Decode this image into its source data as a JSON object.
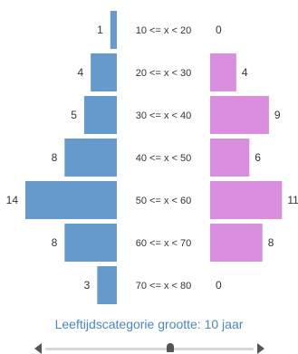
{
  "chart_data": {
    "type": "bar",
    "layout": "population-pyramid",
    "categories": [
      "10 <= x < 20",
      "20 <= x < 30",
      "30 <= x < 40",
      "40 <= x < 50",
      "50 <= x < 60",
      "60 <= x < 70",
      "70 <= x < 80"
    ],
    "series": [
      {
        "side": "left",
        "color": "#6699cc",
        "values": [
          1,
          4,
          5,
          8,
          14,
          8,
          3
        ]
      },
      {
        "side": "right",
        "color": "#d98fdd",
        "values": [
          0,
          4,
          9,
          6,
          11,
          8,
          0
        ]
      }
    ],
    "xlim": [
      0,
      14
    ]
  },
  "caption": "Leeftijdscategorie grootte: 10 jaar",
  "slider": {
    "position": 0.6,
    "left_arrow_icon": "triangle-left-icon",
    "right_arrow_icon": "triangle-right-icon"
  }
}
